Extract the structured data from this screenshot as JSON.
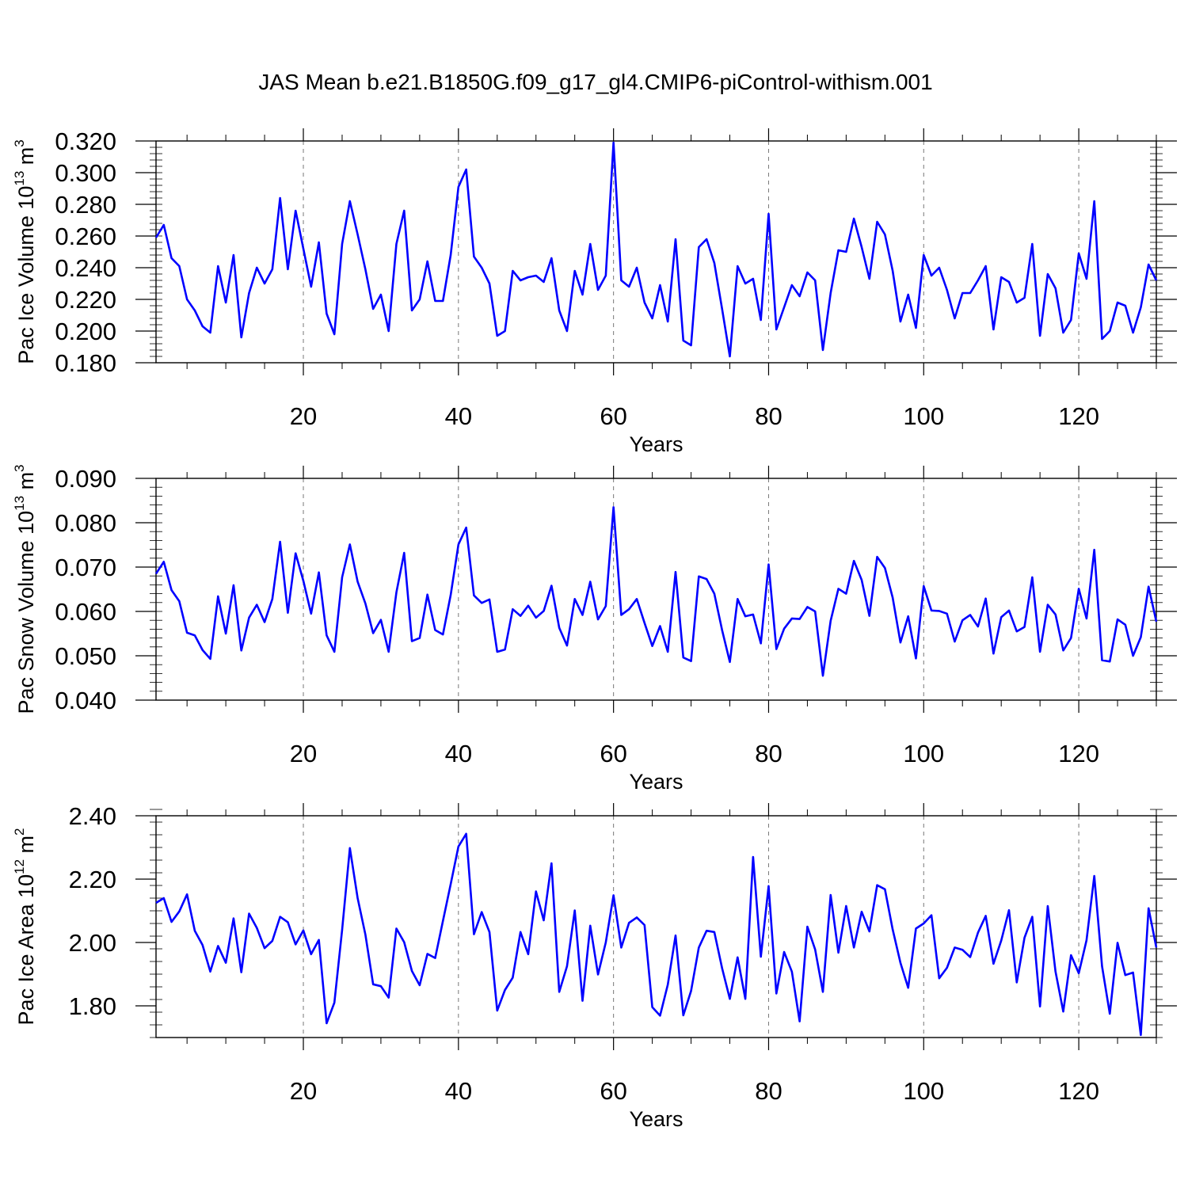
{
  "figure": {
    "title": "JAS Mean b.e21.B1850G.f09_g17_gl4.CMIP6-piControl-withism.001"
  },
  "chart_data": [
    {
      "type": "line",
      "xlabel": "Years",
      "ylabel": {
        "prefix": "Pac Ice Volume 10",
        "sup": "13",
        "unit": " m",
        "unit_sup": "3"
      },
      "xlim": [
        1,
        130
      ],
      "ylim": [
        0.18,
        0.32
      ],
      "xticks": [
        20,
        40,
        60,
        80,
        100,
        120
      ],
      "xtick_labels": [
        "20",
        "40",
        "60",
        "80",
        "100",
        "120"
      ],
      "yticks": [
        0.18,
        0.2,
        0.22,
        0.24,
        0.26,
        0.28,
        0.3,
        0.32
      ],
      "ytick_labels": [
        "0.180",
        "0.200",
        "0.220",
        "0.240",
        "0.260",
        "0.280",
        "0.300",
        "0.320"
      ],
      "grid": "vertical dashed at major x ticks",
      "line_color": "#0000ff",
      "series": [
        {
          "values": [
            0.259,
            0.267,
            0.246,
            0.241,
            0.22,
            0.213,
            0.203,
            0.199,
            0.241,
            0.218,
            0.248,
            0.196,
            0.224,
            0.24,
            0.23,
            0.239,
            0.284,
            0.239,
            0.276,
            0.252,
            0.228,
            0.256,
            0.211,
            0.198,
            0.255,
            0.282,
            0.261,
            0.239,
            0.214,
            0.223,
            0.2,
            0.255,
            0.276,
            0.213,
            0.22,
            0.244,
            0.219,
            0.219,
            0.248,
            0.291,
            0.302,
            0.247,
            0.24,
            0.23,
            0.197,
            0.2,
            0.238,
            0.232,
            0.234,
            0.235,
            0.231,
            0.246,
            0.213,
            0.2,
            0.238,
            0.223,
            0.255,
            0.226,
            0.235,
            0.319,
            0.232,
            0.228,
            0.24,
            0.218,
            0.208,
            0.229,
            0.206,
            0.258,
            0.194,
            0.191,
            0.253,
            0.258,
            0.243,
            0.214,
            0.184,
            0.241,
            0.23,
            0.233,
            0.207,
            0.274,
            0.201,
            0.215,
            0.229,
            0.222,
            0.237,
            0.232,
            0.188,
            0.224,
            0.251,
            0.25,
            0.271,
            0.253,
            0.233,
            0.269,
            0.261,
            0.238,
            0.206,
            0.223,
            0.202,
            0.248,
            0.235,
            0.24,
            0.226,
            0.208,
            0.224,
            0.224,
            0.232,
            0.241,
            0.201,
            0.234,
            0.231,
            0.218,
            0.221,
            0.255,
            0.197,
            0.236,
            0.227,
            0.199,
            0.207,
            0.249,
            0.233,
            0.282,
            0.195,
            0.2,
            0.218,
            0.216,
            0.199,
            0.215,
            0.242,
            0.232
          ]
        }
      ]
    },
    {
      "type": "line",
      "xlabel": "Years",
      "ylabel": {
        "prefix": "Pac Snow Volume 10",
        "sup": "13",
        "unit": " m",
        "unit_sup": "3"
      },
      "xlim": [
        1,
        130
      ],
      "ylim": [
        0.04,
        0.09
      ],
      "xticks": [
        20,
        40,
        60,
        80,
        100,
        120
      ],
      "xtick_labels": [
        "20",
        "40",
        "60",
        "80",
        "100",
        "120"
      ],
      "yticks": [
        0.04,
        0.05,
        0.06,
        0.07,
        0.08,
        0.09
      ],
      "ytick_labels": [
        "0.040",
        "0.050",
        "0.060",
        "0.070",
        "0.080",
        "0.090"
      ],
      "grid": "vertical dashed at major x ticks",
      "line_color": "#0000ff",
      "series": [
        {
          "values": [
            0.0685,
            0.0712,
            0.0648,
            0.0623,
            0.0552,
            0.0546,
            0.0513,
            0.0493,
            0.0634,
            0.055,
            0.0659,
            0.0512,
            0.0586,
            0.0615,
            0.0576,
            0.0628,
            0.0757,
            0.0597,
            0.0731,
            0.0669,
            0.0595,
            0.0688,
            0.0546,
            0.0509,
            0.0677,
            0.0751,
            0.0667,
            0.0618,
            0.0551,
            0.0581,
            0.0509,
            0.0643,
            0.0732,
            0.0533,
            0.054,
            0.0638,
            0.0558,
            0.0548,
            0.0637,
            0.0751,
            0.0789,
            0.0636,
            0.0619,
            0.0627,
            0.0509,
            0.0514,
            0.0605,
            0.059,
            0.0613,
            0.0586,
            0.0601,
            0.0658,
            0.0563,
            0.0523,
            0.0628,
            0.0592,
            0.0667,
            0.0582,
            0.0612,
            0.0835,
            0.0592,
            0.0605,
            0.0628,
            0.0574,
            0.0522,
            0.0567,
            0.0509,
            0.0689,
            0.0496,
            0.0488,
            0.0679,
            0.0673,
            0.064,
            0.0558,
            0.0486,
            0.0628,
            0.0589,
            0.0593,
            0.0528,
            0.0706,
            0.0515,
            0.0561,
            0.0584,
            0.0583,
            0.061,
            0.06,
            0.0455,
            0.0579,
            0.0651,
            0.064,
            0.0714,
            0.0671,
            0.059,
            0.0723,
            0.0698,
            0.0631,
            0.053,
            0.0589,
            0.0494,
            0.0657,
            0.0602,
            0.0601,
            0.0595,
            0.0532,
            0.058,
            0.0592,
            0.0566,
            0.0629,
            0.0505,
            0.0587,
            0.0602,
            0.0555,
            0.0565,
            0.0677,
            0.0509,
            0.0615,
            0.0593,
            0.0512,
            0.054,
            0.0651,
            0.0584,
            0.0739,
            0.049,
            0.0487,
            0.0582,
            0.057,
            0.05,
            0.0542,
            0.0656,
            0.0577
          ]
        }
      ]
    },
    {
      "type": "line",
      "xlabel": "Years",
      "ylabel": {
        "prefix": "Pac Ice Area 10",
        "sup": "12",
        "unit": " m",
        "unit_sup": "2"
      },
      "xlim": [
        1,
        130
      ],
      "ylim": [
        1.7,
        2.4
      ],
      "xticks": [
        20,
        40,
        60,
        80,
        100,
        120
      ],
      "xtick_labels": [
        "20",
        "40",
        "60",
        "80",
        "100",
        "120"
      ],
      "yticks": [
        1.8,
        2.0,
        2.2,
        2.4
      ],
      "ytick_labels": [
        "1.80",
        "2.00",
        "2.20",
        "2.40"
      ],
      "grid": "vertical dashed at major x ticks",
      "line_color": "#0000ff",
      "series": [
        {
          "values": [
            2.125,
            2.14,
            2.065,
            2.098,
            2.152,
            2.037,
            1.992,
            1.908,
            1.989,
            1.936,
            2.076,
            1.906,
            2.091,
            2.046,
            1.982,
            2.005,
            2.081,
            2.064,
            1.994,
            2.038,
            1.963,
            2.008,
            1.745,
            1.81,
            2.04,
            2.298,
            2.14,
            2.025,
            1.868,
            1.862,
            1.826,
            2.044,
            2.001,
            1.91,
            1.865,
            1.964,
            1.951,
            2.068,
            2.184,
            2.303,
            2.343,
            2.026,
            2.096,
            2.033,
            1.785,
            1.85,
            1.889,
            2.033,
            1.963,
            2.161,
            2.07,
            2.25,
            1.844,
            1.925,
            2.101,
            1.816,
            2.053,
            1.899,
            2.0,
            2.149,
            1.984,
            2.062,
            2.079,
            2.055,
            1.796,
            1.769,
            1.867,
            2.022,
            1.77,
            1.847,
            1.984,
            2.037,
            2.033,
            1.919,
            1.822,
            1.953,
            1.822,
            2.27,
            1.955,
            2.178,
            1.839,
            1.97,
            1.908,
            1.751,
            2.05,
            1.978,
            1.844,
            2.15,
            1.968,
            2.115,
            1.984,
            2.097,
            2.035,
            2.181,
            2.168,
            2.041,
            1.936,
            1.857,
            2.044,
            2.06,
            2.086,
            1.887,
            1.92,
            1.984,
            1.977,
            1.954,
            2.031,
            2.084,
            1.933,
            2.006,
            2.102,
            1.874,
            2.015,
            2.081,
            1.798,
            2.115,
            1.908,
            1.782,
            1.96,
            1.903,
            2.007,
            2.21,
            1.925,
            1.775,
            1.999,
            1.897,
            1.905,
            1.708,
            2.108,
            1.984
          ]
        }
      ]
    }
  ]
}
